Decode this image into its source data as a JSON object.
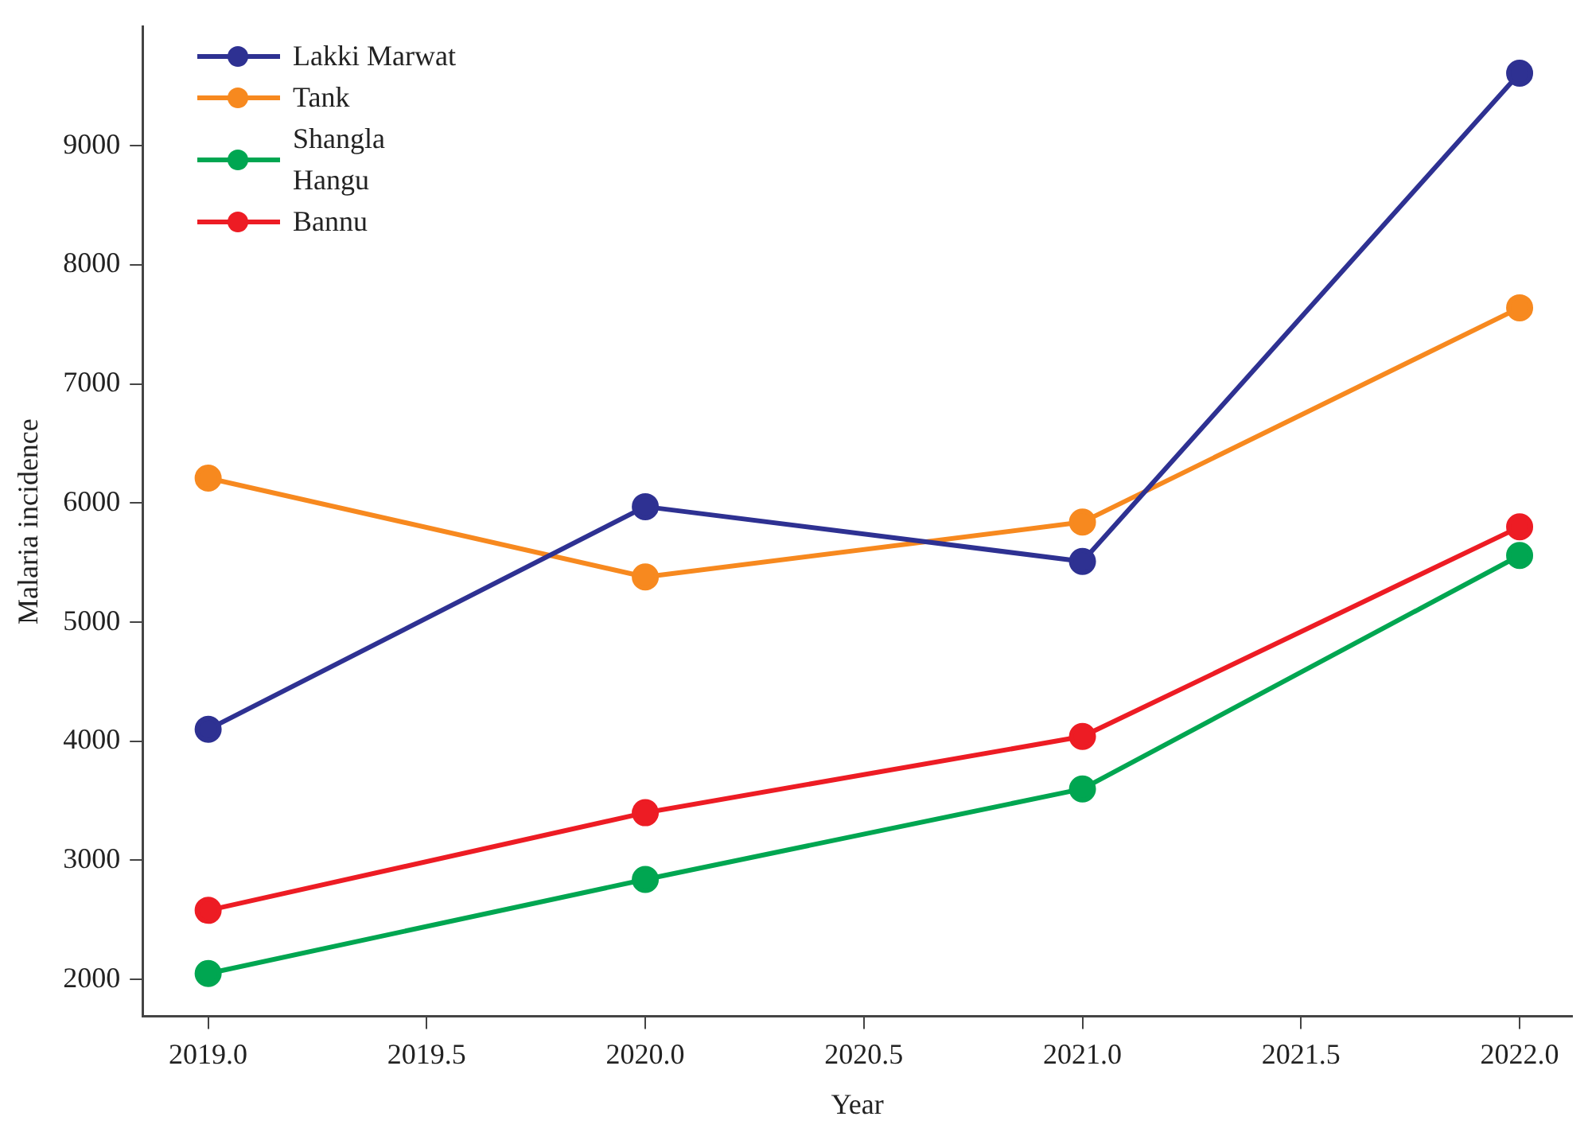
{
  "chart_data": {
    "type": "line",
    "xlabel": "Year",
    "ylabel": "Malaria incidence",
    "x": [
      2019,
      2020,
      2021,
      2022
    ],
    "xlim": [
      2018.85,
      2022.12
    ],
    "ylim": [
      1690,
      10000
    ],
    "xticks": [
      {
        "value": 2019,
        "label": "2019.0"
      },
      {
        "value": 2019.5,
        "label": "2019.5"
      },
      {
        "value": 2020,
        "label": "2020.0"
      },
      {
        "value": 2020.5,
        "label": "2020.5"
      },
      {
        "value": 2021,
        "label": "2021.0"
      },
      {
        "value": 2021.5,
        "label": "2021.5"
      },
      {
        "value": 2022,
        "label": "2022.0"
      }
    ],
    "yticks": [
      2000,
      3000,
      4000,
      5000,
      6000,
      7000,
      8000,
      9000
    ],
    "grid": false,
    "legend": "top left",
    "marker": "circle",
    "line_style": "solid",
    "series": [
      {
        "name": "Lakki Marwat",
        "color": "#2e3192",
        "values": [
          4100,
          5970,
          5510,
          9610
        ]
      },
      {
        "name": "Tank",
        "color": "#f7891f",
        "values": [
          6210,
          5380,
          5840,
          7640
        ]
      },
      {
        "name": "Shangla\nHangu",
        "color": "#00a651",
        "values": [
          2050,
          2840,
          3600,
          5560
        ]
      },
      {
        "name": "Bannu",
        "color": "#ed1c24",
        "values": [
          2580,
          3400,
          4040,
          5800
        ]
      }
    ]
  }
}
